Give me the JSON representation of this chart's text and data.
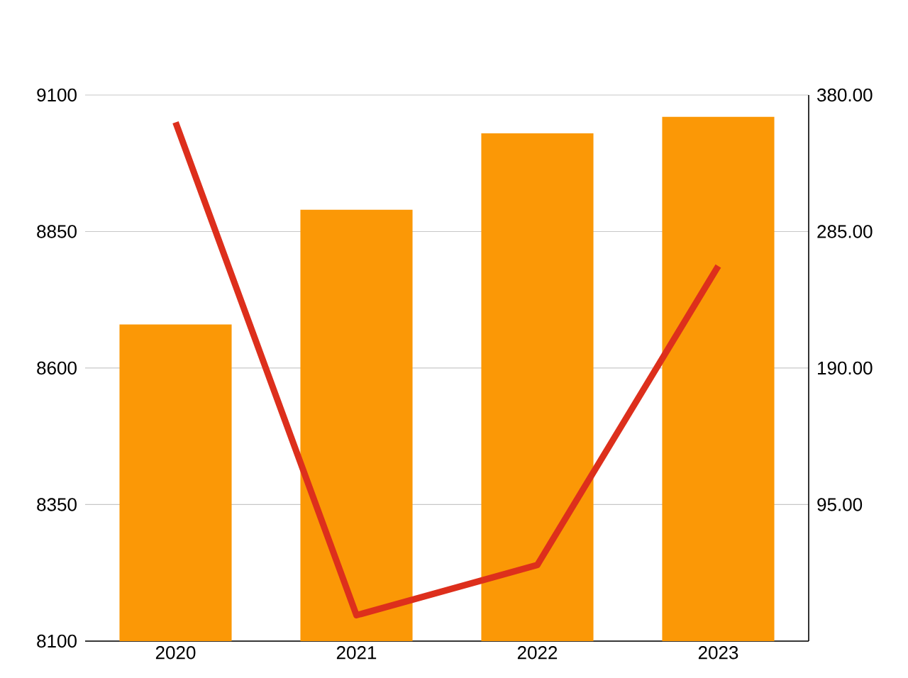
{
  "chart_data": {
    "type": "bar",
    "categories": [
      "2020",
      "2021",
      "2022",
      "2023"
    ],
    "series": [
      {
        "color": "#fb9806",
        "values": [
          8680,
          8890,
          9030,
          9060
        ]
      },
      {
        "type": "line",
        "axis": "y2",
        "color": "#dd2f1c",
        "values": [
          361,
          18,
          53,
          261
        ]
      }
    ],
    "ylim": [
      8100,
      9100
    ],
    "yticks": [
      8100,
      8350,
      8600,
      8850,
      9100
    ],
    "y2lim": [
      0,
      380
    ],
    "y2ticks": [
      {
        "value": 95,
        "label": "95.00"
      },
      {
        "value": 190,
        "label": "190.00"
      },
      {
        "value": 285,
        "label": "285.00"
      },
      {
        "value": 380,
        "label": "380.00"
      }
    ],
    "grid": "y"
  }
}
